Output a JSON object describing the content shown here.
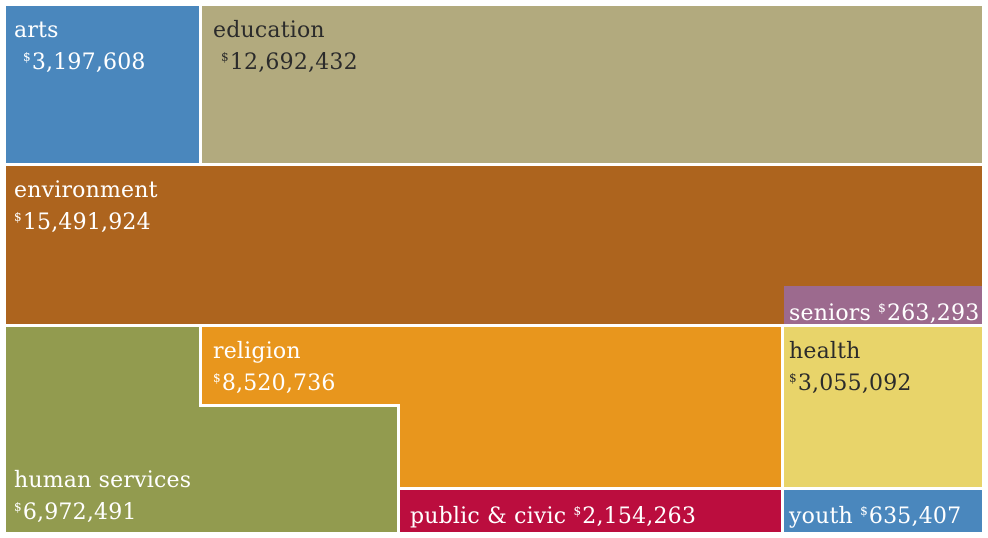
{
  "chart_data": {
    "type": "treemap",
    "currency_symbol": "$",
    "cells": [
      {
        "name": "arts",
        "value": "3,197,608",
        "color": "#4a87bd"
      },
      {
        "name": "education",
        "value": "12,692,432",
        "color": "#b2aa7e"
      },
      {
        "name": "environment",
        "value": "15,491,924",
        "color": "#ad641e"
      },
      {
        "name": "seniors",
        "value": "263,293",
        "color": "#9c6a8e"
      },
      {
        "name": "human services",
        "value": "6,972,491",
        "color": "#929b4f"
      },
      {
        "name": "religion",
        "value": "8,520,736",
        "color": "#e8961d"
      },
      {
        "name": "health",
        "value": "3,055,092",
        "color": "#e8d46a"
      },
      {
        "name": "public & civic",
        "value": "2,154,263",
        "color": "#bb0d3e"
      },
      {
        "name": "youth",
        "value": "635,407",
        "color": "#4a87bd"
      }
    ]
  }
}
